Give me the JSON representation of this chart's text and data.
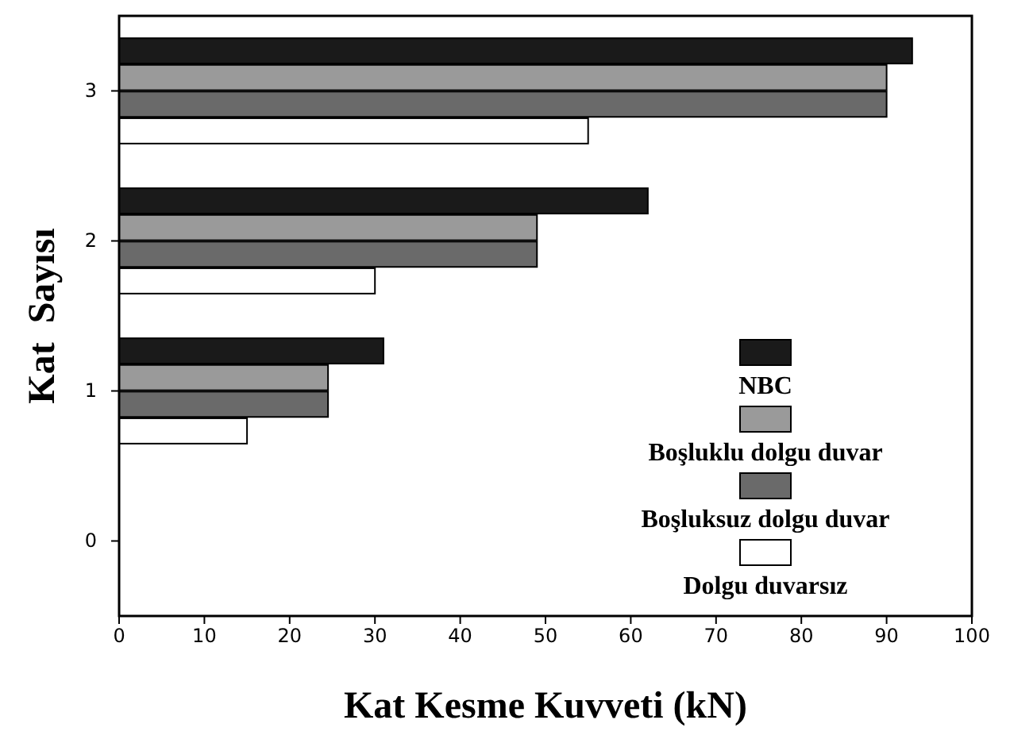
{
  "chart_data": {
    "type": "bar",
    "orientation": "horizontal",
    "xlabel": "Kat Kesme Kuvveti (kN)",
    "ylabel": "Kat  Sayısı",
    "categories": [
      "3",
      "2",
      "1",
      "0"
    ],
    "xlim": [
      0,
      100
    ],
    "xticks": [
      0,
      10,
      20,
      30,
      40,
      50,
      60,
      70,
      80,
      90,
      100
    ],
    "legend": "bottom right",
    "grid": false,
    "series": [
      {
        "name": "NBC",
        "color": "#1a1a1a",
        "values": [
          93,
          62,
          31,
          null
        ]
      },
      {
        "name": "Boşluklu dolgu duvar",
        "color": "#9a9a9a",
        "values": [
          90,
          49,
          24.5,
          null
        ]
      },
      {
        "name": "Boşluksuz dolgu duvar",
        "color": "#6a6a6a",
        "values": [
          90,
          49,
          24.5,
          null
        ]
      },
      {
        "name": "Dolgu duvarsız",
        "color": "#ffffff",
        "values": [
          55,
          30,
          15,
          null
        ]
      }
    ]
  }
}
